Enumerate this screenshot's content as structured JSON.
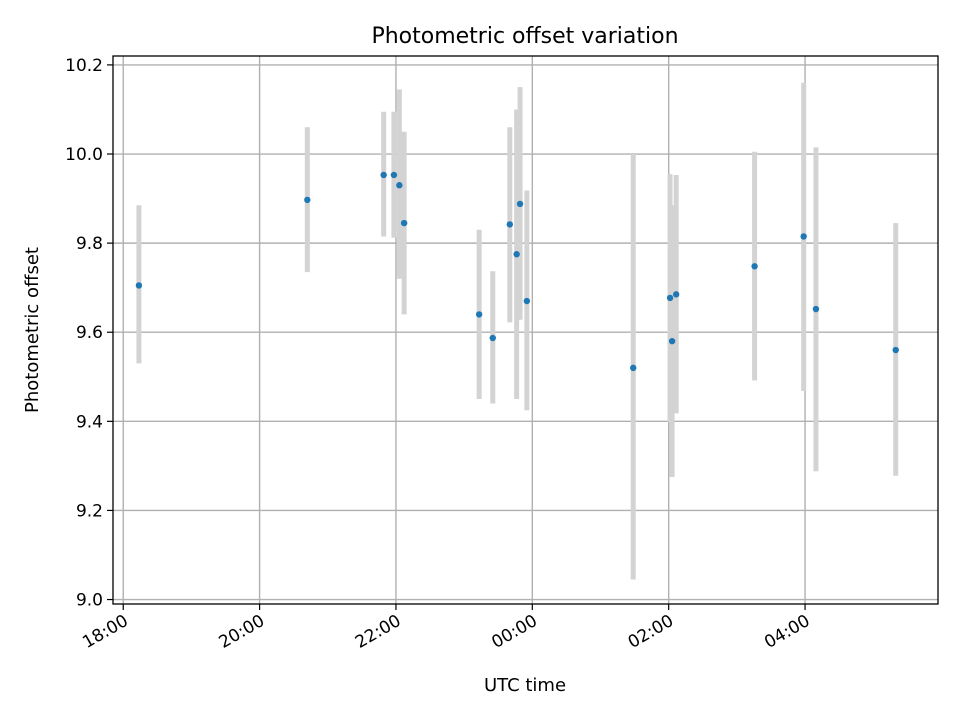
{
  "chart_data": {
    "type": "scatter",
    "title": "Photometric offset variation",
    "xlabel": "UTC time",
    "ylabel": "Photometric offset",
    "x_unit": "hours since 18:00 UTC",
    "xlim": [
      -0.15,
      11.95
    ],
    "ylim": [
      8.99,
      10.22
    ],
    "x_ticks": [
      {
        "value": 0,
        "label": "18:00"
      },
      {
        "value": 2,
        "label": "20:00"
      },
      {
        "value": 4,
        "label": "22:00"
      },
      {
        "value": 6,
        "label": "00:00"
      },
      {
        "value": 8,
        "label": "02:00"
      },
      {
        "value": 10,
        "label": "04:00"
      }
    ],
    "y_ticks": [
      {
        "value": 9.0,
        "label": "9.0"
      },
      {
        "value": 9.2,
        "label": "9.2"
      },
      {
        "value": 9.4,
        "label": "9.4"
      },
      {
        "value": 9.6,
        "label": "9.6"
      },
      {
        "value": 9.8,
        "label": "9.8"
      },
      {
        "value": 10.0,
        "label": "10.0"
      },
      {
        "value": 10.2,
        "label": "10.2"
      }
    ],
    "grid": true,
    "marker_color": "#1f77b4",
    "errorbar_color": "#d3d3d3",
    "points": [
      {
        "x": 0.23,
        "y": 9.705,
        "low": 9.53,
        "high": 9.885
      },
      {
        "x": 2.7,
        "y": 9.897,
        "low": 9.735,
        "high": 10.06
      },
      {
        "x": 3.82,
        "y": 9.953,
        "low": 9.815,
        "high": 10.095
      },
      {
        "x": 3.97,
        "y": 9.953,
        "low": 9.812,
        "high": 10.095
      },
      {
        "x": 4.05,
        "y": 9.93,
        "low": 9.72,
        "high": 10.145
      },
      {
        "x": 4.12,
        "y": 9.845,
        "low": 9.64,
        "high": 10.05
      },
      {
        "x": 5.22,
        "y": 9.64,
        "low": 9.45,
        "high": 9.83
      },
      {
        "x": 5.42,
        "y": 9.587,
        "low": 9.44,
        "high": 9.737
      },
      {
        "x": 5.67,
        "y": 9.842,
        "low": 9.622,
        "high": 10.06
      },
      {
        "x": 5.77,
        "y": 9.775,
        "low": 9.45,
        "high": 10.1
      },
      {
        "x": 5.82,
        "y": 9.888,
        "low": 9.628,
        "high": 10.15
      },
      {
        "x": 5.92,
        "y": 9.67,
        "low": 9.425,
        "high": 9.918
      },
      {
        "x": 7.48,
        "y": 9.52,
        "low": 9.045,
        "high": 10.0
      },
      {
        "x": 8.02,
        "y": 9.677,
        "low": 9.398,
        "high": 9.955
      },
      {
        "x": 8.05,
        "y": 9.58,
        "low": 9.275,
        "high": 9.885
      },
      {
        "x": 8.11,
        "y": 9.685,
        "low": 9.418,
        "high": 9.953
      },
      {
        "x": 9.26,
        "y": 9.748,
        "low": 9.492,
        "high": 10.005
      },
      {
        "x": 9.98,
        "y": 9.815,
        "low": 9.468,
        "high": 10.16
      },
      {
        "x": 10.16,
        "y": 9.652,
        "low": 9.288,
        "high": 10.015
      },
      {
        "x": 11.33,
        "y": 9.56,
        "low": 9.278,
        "high": 9.845
      }
    ]
  }
}
